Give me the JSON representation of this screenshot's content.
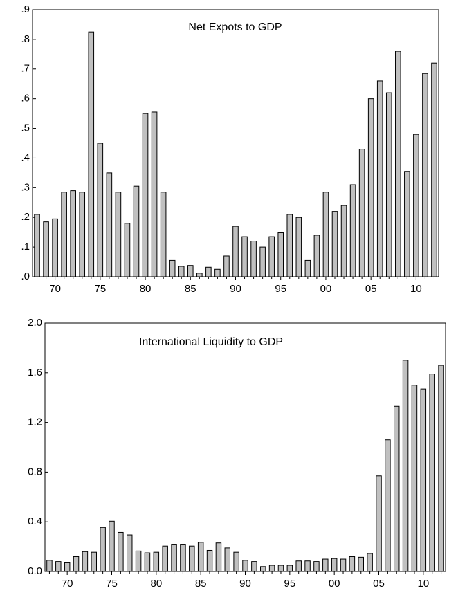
{
  "chart_data": [
    {
      "type": "bar",
      "title": "Net Expots to GDP",
      "categories": [
        null,
        null,
        "70",
        null,
        null,
        null,
        null,
        "75",
        null,
        null,
        null,
        null,
        "80",
        null,
        null,
        null,
        null,
        "85",
        null,
        null,
        null,
        null,
        "90",
        null,
        null,
        null,
        null,
        "95",
        null,
        null,
        null,
        null,
        "00",
        null,
        null,
        null,
        null,
        "05",
        null,
        null,
        null,
        null,
        "10",
        null,
        null
      ],
      "values": [
        0.21,
        0.185,
        0.195,
        0.285,
        0.29,
        0.285,
        0.825,
        0.45,
        0.35,
        0.285,
        0.18,
        0.305,
        0.55,
        0.555,
        0.285,
        0.055,
        0.035,
        0.038,
        0.012,
        0.032,
        0.025,
        0.07,
        0.17,
        0.135,
        0.12,
        0.1,
        0.135,
        0.148,
        0.21,
        0.2,
        0.055,
        0.14,
        0.285,
        0.22,
        0.24,
        0.31,
        0.43,
        0.6,
        0.66,
        0.62,
        0.76,
        0.355,
        0.48,
        0.685,
        0.72
      ],
      "color": "#c0c0c0",
      "ylim": [
        0,
        0.9
      ],
      "yticks": [
        {
          "value": 0,
          "label": ".0"
        },
        {
          "value": 0.1,
          "label": ".1"
        },
        {
          "value": 0.2,
          "label": ".2"
        },
        {
          "value": 0.3,
          "label": ".3"
        },
        {
          "value": 0.4,
          "label": ".4"
        },
        {
          "value": 0.5,
          "label": ".5"
        },
        {
          "value": 0.6,
          "label": ".6"
        },
        {
          "value": 0.7,
          "label": ".7"
        },
        {
          "value": 0.8,
          "label": ".8"
        },
        {
          "value": 0.9,
          "label": ".9"
        }
      ]
    },
    {
      "type": "bar",
      "title": "International Liquidity to GDP",
      "categories": [
        null,
        null,
        "70",
        null,
        null,
        null,
        null,
        "75",
        null,
        null,
        null,
        null,
        "80",
        null,
        null,
        null,
        null,
        "85",
        null,
        null,
        null,
        null,
        "90",
        null,
        null,
        null,
        null,
        "95",
        null,
        null,
        null,
        null,
        "00",
        null,
        null,
        null,
        null,
        "05",
        null,
        null,
        null,
        null,
        "10",
        null,
        null
      ],
      "values": [
        0.09,
        0.08,
        0.07,
        0.12,
        0.16,
        0.155,
        0.355,
        0.405,
        0.315,
        0.295,
        0.165,
        0.15,
        0.155,
        0.205,
        0.215,
        0.215,
        0.205,
        0.235,
        0.17,
        0.23,
        0.19,
        0.155,
        0.09,
        0.08,
        0.04,
        0.05,
        0.05,
        0.05,
        0.085,
        0.085,
        0.08,
        0.1,
        0.105,
        0.1,
        0.12,
        0.115,
        0.145,
        0.77,
        1.06,
        1.33,
        1.7,
        1.5,
        1.47,
        1.59,
        1.66
      ],
      "color": "#c0c0c0",
      "ylim": [
        0,
        2.0
      ],
      "yticks": [
        {
          "value": 0,
          "label": "0.0"
        },
        0.4,
        0.8,
        1.2,
        1.6,
        {
          "value": 2.0,
          "label": "2.0"
        }
      ]
    }
  ]
}
